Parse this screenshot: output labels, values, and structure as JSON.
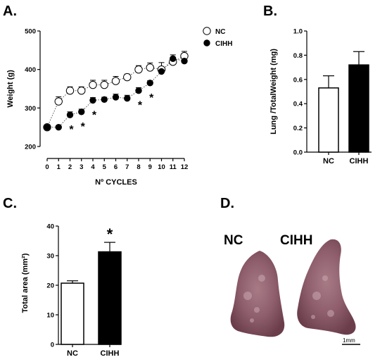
{
  "panels": {
    "a": "A.",
    "b": "B.",
    "c": "C.",
    "d": "D."
  },
  "chart_data": [
    {
      "type": "line",
      "panel": "A",
      "xlabel": "Nº CYCLES",
      "ylabel": "Weight (g)",
      "x": [
        0,
        1,
        2,
        3,
        4,
        5,
        6,
        7,
        8,
        9,
        10,
        11,
        12
      ],
      "xlim": [
        0,
        12
      ],
      "ylim": [
        200,
        500
      ],
      "yticks": [
        200,
        300,
        400,
        500
      ],
      "legend_position": "top-right",
      "series": [
        {
          "name": "NC",
          "marker": "open-circle",
          "values": [
            250,
            317,
            345,
            345,
            360,
            360,
            370,
            380,
            400,
            405,
            400,
            420,
            435
          ],
          "errors": [
            0,
            12,
            10,
            10,
            12,
            12,
            12,
            8,
            10,
            12,
            18,
            10,
            12
          ]
        },
        {
          "name": "CIHH",
          "marker": "filled-circle",
          "values": [
            250,
            250,
            282,
            290,
            320,
            322,
            328,
            325,
            345,
            365,
            395,
            428,
            422
          ],
          "errors": [
            0,
            4,
            8,
            7,
            7,
            6,
            8,
            8,
            8,
            6,
            8,
            10,
            8
          ]
        }
      ],
      "significance_x": [
        2,
        3,
        4,
        8,
        9
      ],
      "significance_mark": "*"
    },
    {
      "type": "bar",
      "panel": "B",
      "categories": [
        "NC",
        "CIHH"
      ],
      "values": [
        0.53,
        0.72
      ],
      "errors": [
        0.1,
        0.11
      ],
      "colors": [
        "#ffffff",
        "#000000"
      ],
      "ylabel": "Lung /TotalWeight (mg)",
      "ylim": [
        0,
        1.0
      ],
      "yticks": [
        0.0,
        0.2,
        0.4,
        0.6,
        0.8,
        1.0
      ]
    },
    {
      "type": "bar",
      "panel": "C",
      "categories": [
        "NC",
        "CIHH"
      ],
      "values": [
        20.7,
        31.3
      ],
      "errors": [
        0.8,
        3.2
      ],
      "colors": [
        "#ffffff",
        "#000000"
      ],
      "ylabel": "Total area (mm²)",
      "ylim": [
        0,
        40
      ],
      "yticks": [
        0,
        10,
        20,
        30,
        40
      ],
      "significance": [
        "",
        "*"
      ]
    }
  ],
  "photo": {
    "label_nc": "NC",
    "label_cihh": "CIHH",
    "scale_bar": "1mm"
  }
}
